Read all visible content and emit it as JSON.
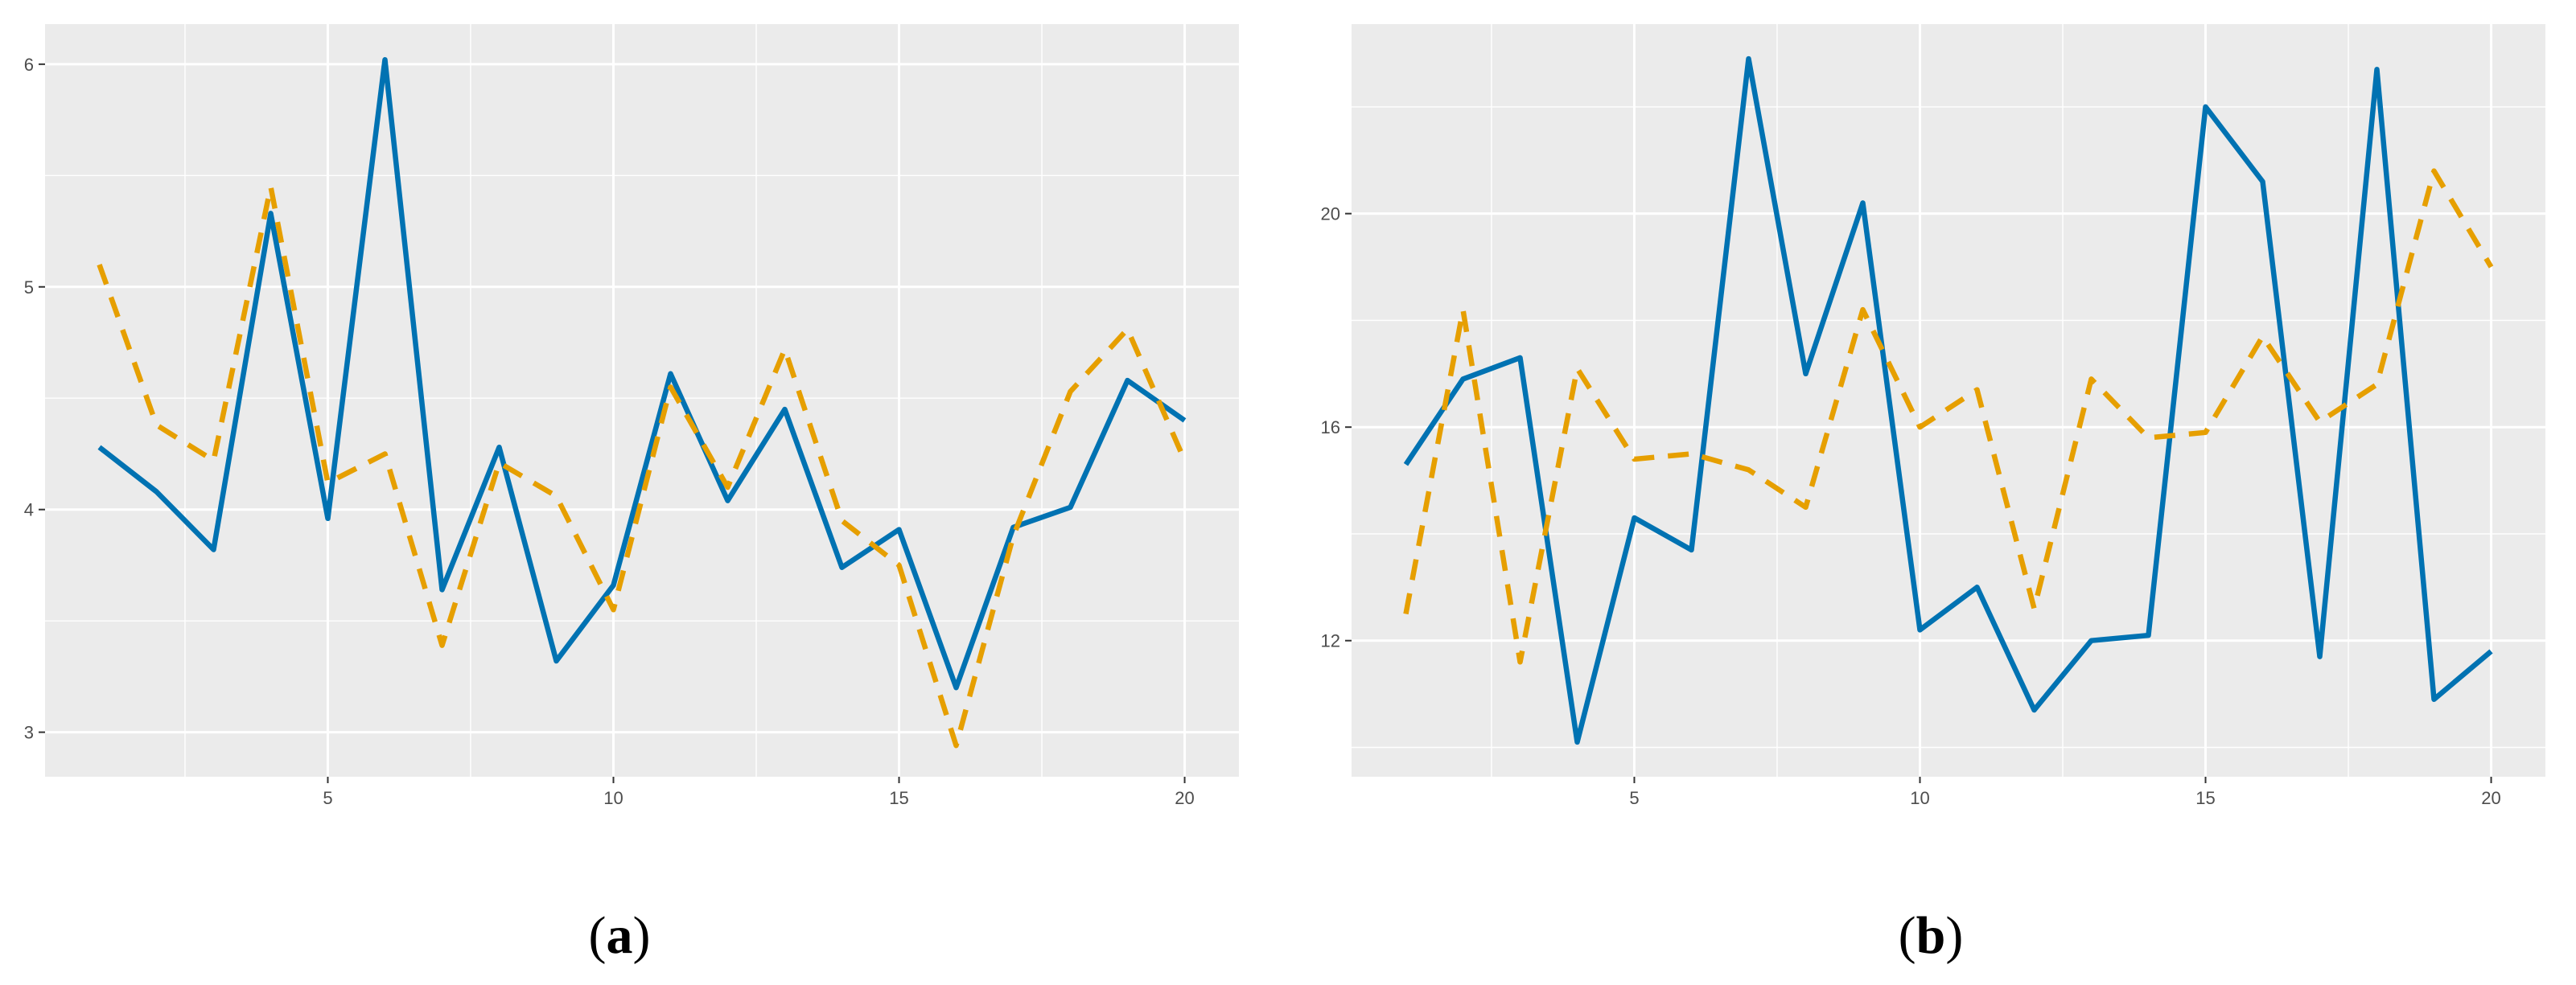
{
  "colors": {
    "panel_bg": "#ebebeb",
    "grid": "#ffffff",
    "solid_series": "#0072b2",
    "dashed_series": "#e69f00",
    "tick_text": "#4d4d4d"
  },
  "chart_data": [
    {
      "type": "line",
      "caption": {
        "open": "(",
        "letter": "a",
        "close": ")"
      },
      "title": "",
      "xlabel": "",
      "ylabel": "",
      "grid": true,
      "xlim": [
        0.05,
        20.95
      ],
      "ylim": [
        2.8,
        6.18
      ],
      "x_ticks": [
        5,
        10,
        15,
        20
      ],
      "y_ticks": [
        3,
        4,
        5,
        6
      ],
      "x_ticks_minor": [
        2.5,
        7.5,
        12.5,
        17.5
      ],
      "y_ticks_minor": [
        3.5,
        4.5,
        5.5
      ],
      "x": [
        1,
        2,
        3,
        4,
        5,
        6,
        7,
        8,
        9,
        10,
        11,
        12,
        13,
        14,
        15,
        16,
        17,
        18,
        19,
        20
      ],
      "series": [
        {
          "style": "solid",
          "color": "#0072b2",
          "values": [
            4.28,
            4.08,
            3.82,
            5.33,
            3.96,
            6.02,
            3.64,
            4.28,
            3.32,
            3.66,
            4.61,
            4.04,
            4.45,
            3.74,
            3.91,
            3.2,
            3.92,
            4.01,
            4.58,
            4.4
          ]
        },
        {
          "style": "dashed",
          "color": "#e69f00",
          "values": [
            5.1,
            4.38,
            4.22,
            5.45,
            4.12,
            4.25,
            3.39,
            4.21,
            4.06,
            3.55,
            4.55,
            4.1,
            4.72,
            3.95,
            3.75,
            2.94,
            3.88,
            4.53,
            4.81,
            4.22
          ]
        }
      ]
    },
    {
      "type": "line",
      "caption": {
        "open": "(",
        "letter": "b",
        "close": ")"
      },
      "title": "",
      "xlabel": "",
      "ylabel": "",
      "grid": true,
      "xlim": [
        0.05,
        20.95
      ],
      "ylim": [
        9.45,
        23.55
      ],
      "x_ticks": [
        5,
        10,
        15,
        20
      ],
      "y_ticks": [
        12,
        16,
        20
      ],
      "x_ticks_minor": [
        2.5,
        7.5,
        12.5,
        17.5
      ],
      "y_ticks_minor": [
        10,
        14,
        18,
        22
      ],
      "x": [
        1,
        2,
        3,
        4,
        5,
        6,
        7,
        8,
        9,
        10,
        11,
        12,
        13,
        14,
        15,
        16,
        17,
        18,
        19,
        20
      ],
      "series": [
        {
          "style": "solid",
          "color": "#0072b2",
          "values": [
            15.3,
            16.9,
            17.3,
            10.1,
            14.3,
            13.7,
            22.9,
            17.0,
            20.2,
            12.2,
            13.0,
            10.7,
            12.0,
            12.1,
            22.0,
            20.6,
            11.7,
            22.7,
            10.9,
            11.8
          ]
        },
        {
          "style": "dashed",
          "color": "#e69f00",
          "values": [
            12.5,
            18.2,
            11.6,
            17.1,
            15.4,
            15.5,
            15.2,
            14.5,
            18.2,
            16.0,
            16.7,
            12.6,
            16.9,
            15.8,
            15.9,
            17.7,
            16.1,
            16.8,
            20.8,
            19.0
          ]
        }
      ]
    }
  ]
}
